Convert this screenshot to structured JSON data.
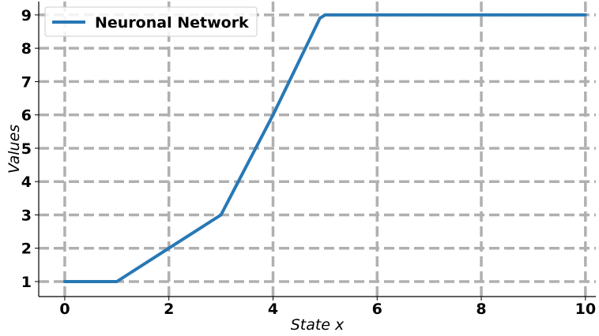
{
  "chart_data": {
    "type": "line",
    "xlabel": "State x",
    "ylabel": "Values",
    "xlim": [
      -0.5,
      10.2
    ],
    "ylim": [
      0.55,
      9.4
    ],
    "xticks": [
      0,
      2,
      4,
      6,
      8,
      10
    ],
    "yticks": [
      1,
      2,
      3,
      4,
      5,
      6,
      7,
      8,
      9
    ],
    "grid": true,
    "grid_style": "dashed",
    "legend_position": "top-left",
    "series": [
      {
        "name": "Neuronal Network",
        "color": "#2878b5",
        "x": [
          0,
          1,
          2,
          3,
          4,
          4.9,
          5,
          6,
          7,
          8,
          9,
          10
        ],
        "y": [
          1,
          1,
          2,
          3,
          6,
          8.9,
          9,
          9,
          9,
          9,
          9,
          9
        ]
      }
    ]
  },
  "colors": {
    "grid": "#b0b0b0",
    "axis": "#000000"
  }
}
